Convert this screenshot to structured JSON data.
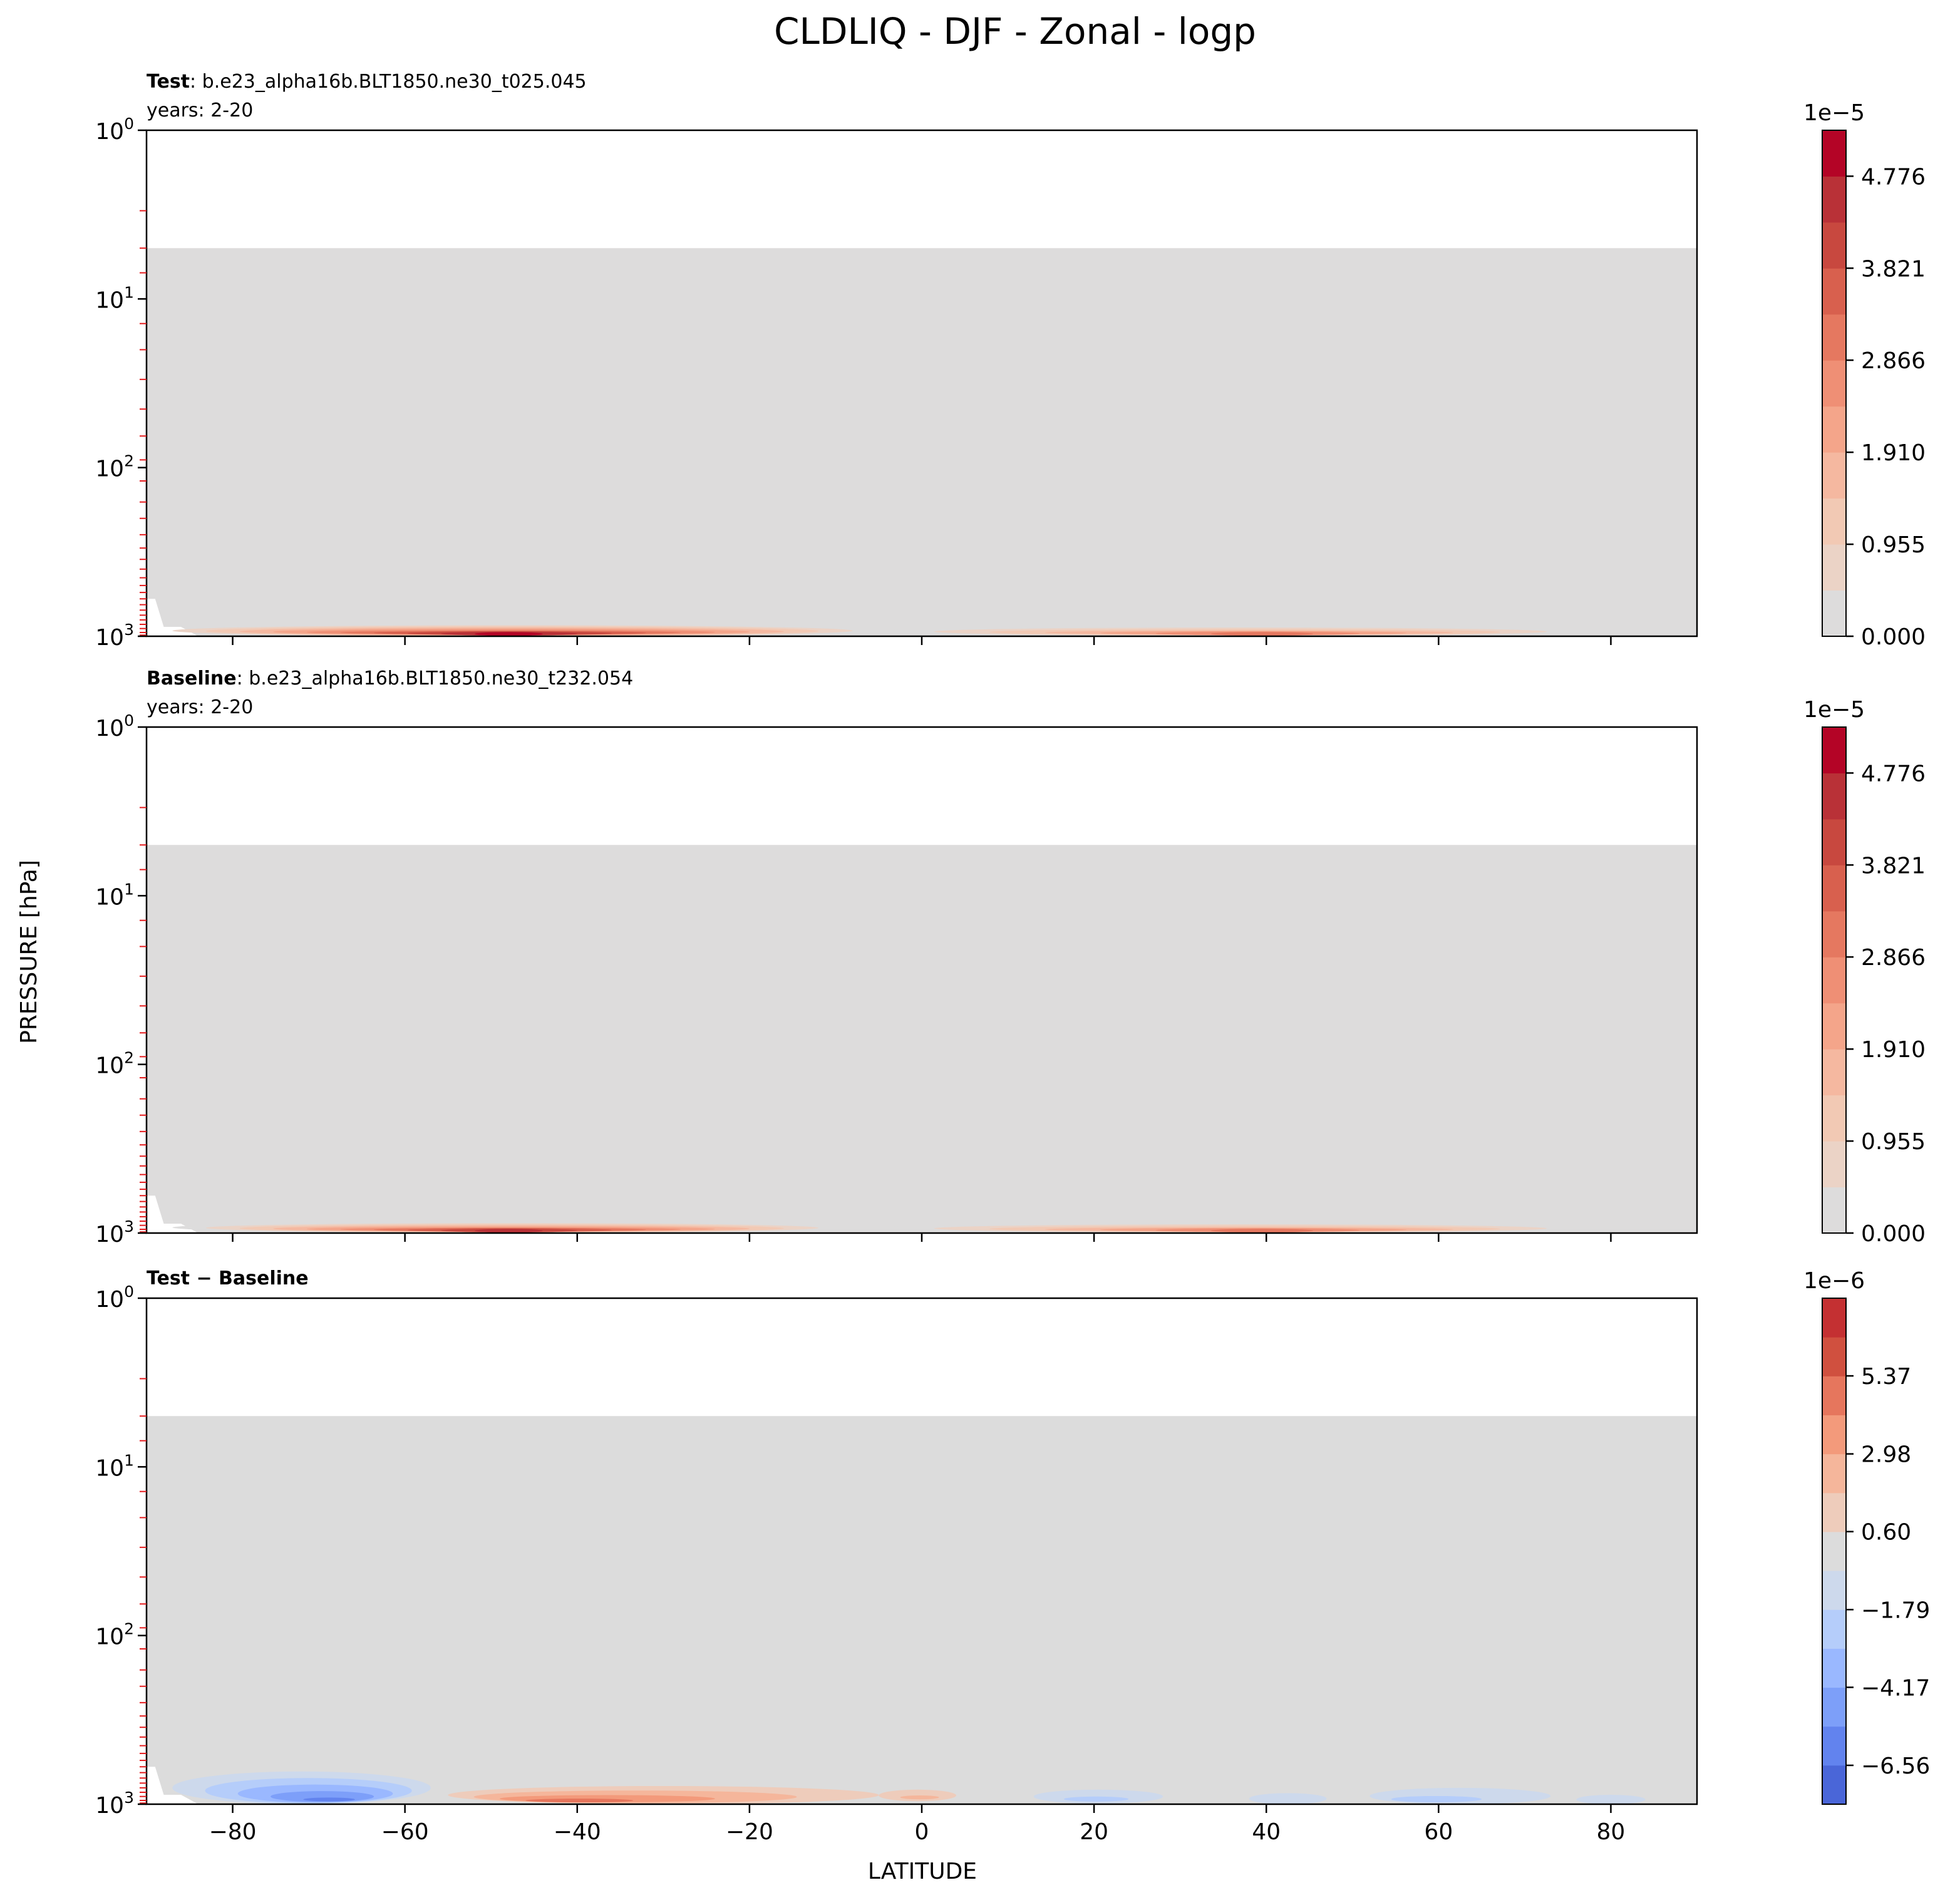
{
  "figure": {
    "title": "CLDLIQ - DJF - Zonal - logp",
    "ylabel": "PRESSURE [hPa]",
    "xlabel": "LATITUDE"
  },
  "chart_data": [
    {
      "type": "heatmap",
      "panel": "test",
      "header_bold": "Test",
      "header_text": ": b.e23_alpha16b.BLT1850.ne30_t025.045",
      "years": "years: 2-20",
      "xlim": [
        -90,
        90
      ],
      "ylim_hpa": [
        1000,
        1
      ],
      "y_scale": "log",
      "y_inverted": true,
      "yticks": [
        {
          "base": "10",
          "exp": "0"
        },
        {
          "base": "10",
          "exp": "1"
        },
        {
          "base": "10",
          "exp": "2"
        },
        {
          "base": "10",
          "exp": "3"
        }
      ],
      "xticks": [],
      "data_top_hpa": 5,
      "colorbar": {
        "multiplier": "1e−5",
        "ticks": [
          "0.000",
          "0.955",
          "1.910",
          "2.866",
          "3.821",
          "4.776"
        ],
        "tick_values": [
          0,
          0.955,
          1.91,
          2.866,
          3.821,
          4.776
        ],
        "range": [
          0,
          5.253
        ],
        "levels": 11,
        "colors": [
          "#dddcdc",
          "#ebd3c6",
          "#f2c9b4",
          "#f5b8a0",
          "#f4a58a",
          "#ef8f75",
          "#e57860",
          "#d8604e",
          "#c8483f",
          "#b93137",
          "#b40426"
        ]
      },
      "features": [
        {
          "lat_min": -87,
          "lat_max": -8,
          "p_top": 860,
          "p_bot": 1000,
          "peak_lat": -48,
          "peak": 5.0
        },
        {
          "lat_min": -5,
          "lat_max": 78,
          "p_top": 870,
          "p_bot": 1000,
          "peak_lat": 40,
          "peak": 3.2
        }
      ]
    },
    {
      "type": "heatmap",
      "panel": "baseline",
      "header_bold": "Baseline",
      "header_text": ": b.e23_alpha16b.BLT1850.ne30_t232.054",
      "years": "years: 2-20",
      "xlim": [
        -90,
        90
      ],
      "ylim_hpa": [
        1000,
        1
      ],
      "y_scale": "log",
      "y_inverted": true,
      "yticks": [
        {
          "base": "10",
          "exp": "0"
        },
        {
          "base": "10",
          "exp": "1"
        },
        {
          "base": "10",
          "exp": "2"
        },
        {
          "base": "10",
          "exp": "3"
        }
      ],
      "xticks": [],
      "data_top_hpa": 5,
      "colorbar": {
        "multiplier": "1e−5",
        "ticks": [
          "0.000",
          "0.955",
          "1.910",
          "2.866",
          "3.821",
          "4.776"
        ],
        "tick_values": [
          0,
          0.955,
          1.91,
          2.866,
          3.821,
          4.776
        ],
        "range": [
          0,
          5.253
        ],
        "levels": 11,
        "colors": [
          "#dddcdc",
          "#ebd3c6",
          "#f2c9b4",
          "#f5b8a0",
          "#f4a58a",
          "#ef8f75",
          "#e57860",
          "#d8604e",
          "#c8483f",
          "#b93137",
          "#b40426"
        ]
      },
      "features": [
        {
          "lat_min": -87,
          "lat_max": -8,
          "p_top": 860,
          "p_bot": 1000,
          "peak_lat": -48,
          "peak": 4.6
        },
        {
          "lat_min": -5,
          "lat_max": 78,
          "p_top": 870,
          "p_bot": 1000,
          "peak_lat": 40,
          "peak": 3.3
        }
      ]
    },
    {
      "type": "heatmap",
      "panel": "difference",
      "header_bold": "Test − Baseline",
      "header_text": "",
      "years": "",
      "xlim": [
        -90,
        90
      ],
      "ylim_hpa": [
        1000,
        1
      ],
      "y_scale": "log",
      "y_inverted": true,
      "yticks": [
        {
          "base": "10",
          "exp": "0"
        },
        {
          "base": "10",
          "exp": "1"
        },
        {
          "base": "10",
          "exp": "2"
        },
        {
          "base": "10",
          "exp": "3"
        }
      ],
      "xticks": [
        "−80",
        "−60",
        "−40",
        "−20",
        "0",
        "20",
        "40",
        "60",
        "80"
      ],
      "xtick_values": [
        -80,
        -60,
        -40,
        -20,
        0,
        20,
        40,
        60,
        80
      ],
      "data_top_hpa": 5,
      "colorbar": {
        "multiplier": "1e−6",
        "ticks": [
          "−6.56",
          "−4.17",
          "−1.79",
          "0.60",
          "2.98",
          "5.37"
        ],
        "tick_values": [
          -6.56,
          -4.17,
          -1.79,
          0.6,
          2.98,
          5.37
        ],
        "range": [
          -7.75,
          7.75
        ],
        "levels": 13,
        "colors": [
          "#4a66d8",
          "#6283ee",
          "#7d9ff9",
          "#9ab8ff",
          "#b5cdfa",
          "#cdd9ec",
          "#dcdcdc",
          "#eeccbb",
          "#f5b69b",
          "#f39a7b",
          "#e6765d",
          "#d0503f",
          "#c43032"
        ]
      },
      "features": [
        {
          "lat_min": -87,
          "lat_max": -57,
          "p_top": 640,
          "p_bot": 1000,
          "peak_lat": -68,
          "peak": -6.0
        },
        {
          "lat_min": -55,
          "lat_max": -5,
          "p_top": 780,
          "p_bot": 1000,
          "peak_lat": -43,
          "peak": 5.2
        },
        {
          "lat_min": -5,
          "lat_max": 4,
          "p_top": 820,
          "p_bot": 960,
          "peak_lat": 0,
          "peak": 2.0
        },
        {
          "lat_min": 13,
          "lat_max": 28,
          "p_top": 820,
          "p_bot": 990,
          "peak_lat": 20,
          "peak": -2.5
        },
        {
          "lat_min": 38,
          "lat_max": 47,
          "p_top": 860,
          "p_bot": 1000,
          "peak_lat": 42,
          "peak": -1.5
        },
        {
          "lat_min": 52,
          "lat_max": 73,
          "p_top": 800,
          "p_bot": 1000,
          "peak_lat": 57,
          "peak": -2.6
        },
        {
          "lat_min": 76,
          "lat_max": 84,
          "p_top": 880,
          "p_bot": 1000,
          "peak_lat": 80,
          "peak": -1.3
        }
      ]
    }
  ]
}
